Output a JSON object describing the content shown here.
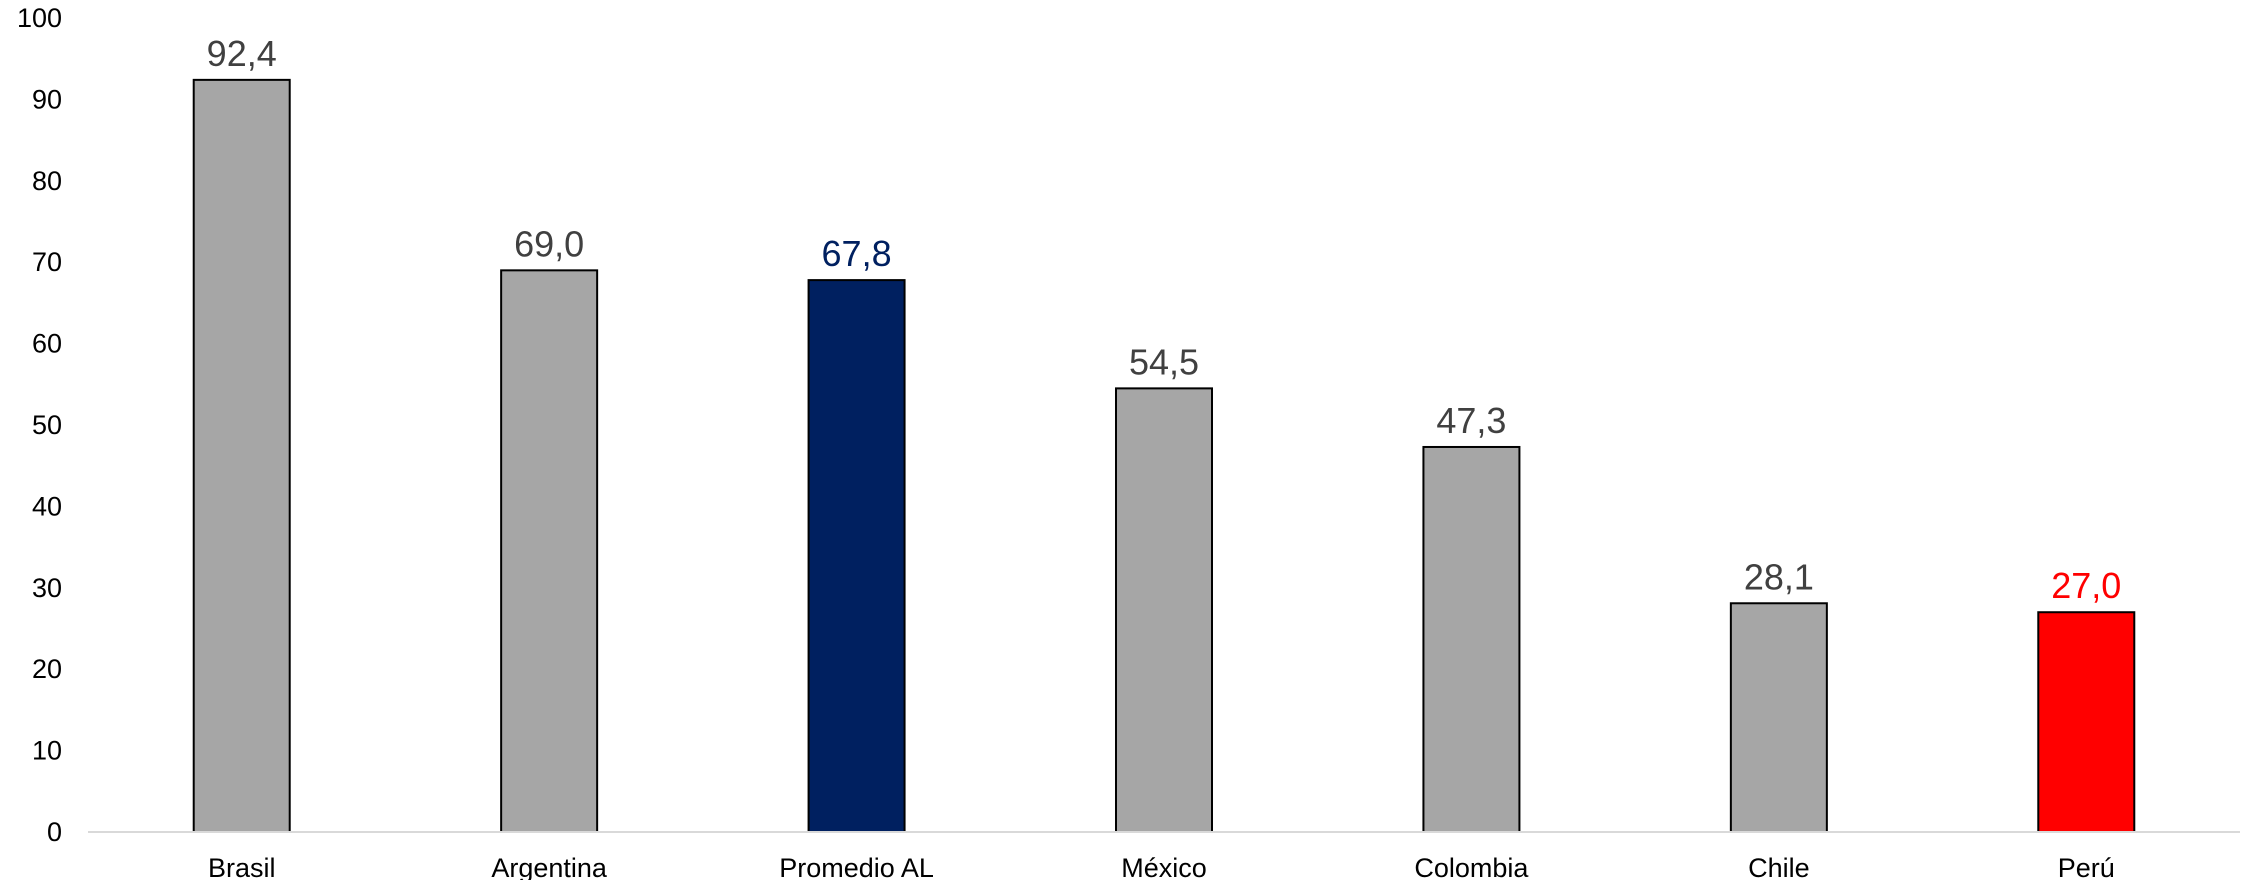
{
  "chart_data": {
    "type": "bar",
    "title": "",
    "xlabel": "",
    "ylabel": "",
    "categories": [
      "Brasil",
      "Argentina",
      "Promedio AL",
      "México",
      "Colombia",
      "Chile",
      "Perú"
    ],
    "values": [
      92.4,
      69.0,
      67.8,
      54.5,
      47.3,
      28.1,
      27.0
    ],
    "value_labels": [
      "92,4",
      "69,0",
      "67,8",
      "54,5",
      "47,3",
      "28,1",
      "27,0"
    ],
    "bar_colors": [
      "#a6a6a6",
      "#a6a6a6",
      "#002060",
      "#a6a6a6",
      "#a6a6a6",
      "#a6a6a6",
      "#ff0000"
    ],
    "label_colors": [
      "#404040",
      "#404040",
      "#002060",
      "#404040",
      "#404040",
      "#404040",
      "#ff0000"
    ],
    "ylim": [
      0,
      100
    ],
    "yticks": [
      0,
      10,
      20,
      30,
      40,
      50,
      60,
      70,
      80,
      90,
      100
    ],
    "ytick_labels": [
      "0",
      "10",
      "20",
      "30",
      "40",
      "50",
      "60",
      "70",
      "80",
      "90",
      "100"
    ],
    "grid": false,
    "legend": "none"
  }
}
